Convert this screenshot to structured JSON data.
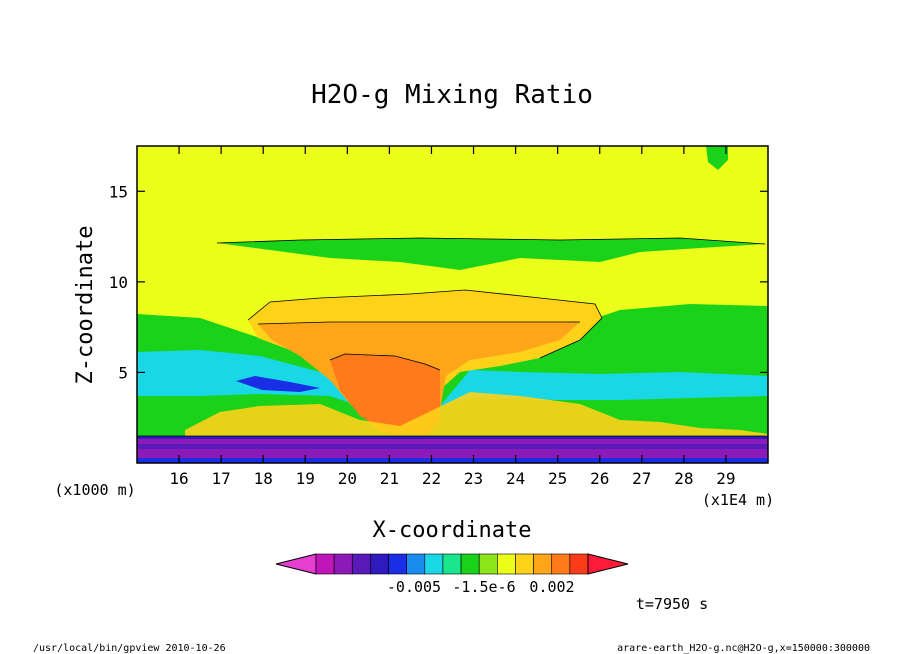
{
  "chart_data": {
    "type": "heatmap",
    "title": "H2O-g Mixing Ratio",
    "xlabel": "X-coordinate",
    "ylabel": "Z-coordinate",
    "x_unit": "(x1E4 m)",
    "y_unit": "(x1000 m)",
    "x_ticks": [
      16,
      17,
      18,
      19,
      20,
      21,
      22,
      23,
      24,
      25,
      26,
      27,
      28,
      29
    ],
    "y_ticks": [
      5,
      10,
      15
    ],
    "xlim": [
      15,
      30
    ],
    "ylim": [
      0,
      17.5
    ],
    "colorbar": {
      "tick_labels": [
        "-0.005",
        "-1.5e-6",
        "0.002"
      ],
      "colors": [
        "#e63fd0",
        "#c015b8",
        "#8c1ab8",
        "#5a1ab8",
        "#2e1abd",
        "#1a2ee6",
        "#1a8cf0",
        "#1ad7e6",
        "#1ae68c",
        "#1ad21a",
        "#8ce61a",
        "#ebff1a",
        "#ffd21a",
        "#ffa51a",
        "#ff7a1a",
        "#ff3c1a",
        "#ff1a3c"
      ]
    },
    "regions": [
      {
        "name": "background",
        "color": "#ebff1a"
      },
      {
        "name": "upper-moist-band",
        "color": "#1ad21a"
      },
      {
        "name": "mid-moist-layer",
        "color": "#1ad21a"
      },
      {
        "name": "humid-layer",
        "color": "#1ad7e6"
      },
      {
        "name": "dry-intrusion",
        "color": "#1a2ee6"
      },
      {
        "name": "anvil",
        "color": "#ffd21a"
      },
      {
        "name": "updraft",
        "color": "#ffa51a"
      },
      {
        "name": "core",
        "color": "#ff7a1a"
      },
      {
        "name": "boundary-layer",
        "color": "#8c1ab8"
      }
    ]
  },
  "annotations": {
    "time": "t=7950 s",
    "footer_left": "/usr/local/bin/gpview  2010-10-26",
    "footer_right": "arare-earth_H2O-g.nc@H2O-g,x=150000:300000"
  }
}
